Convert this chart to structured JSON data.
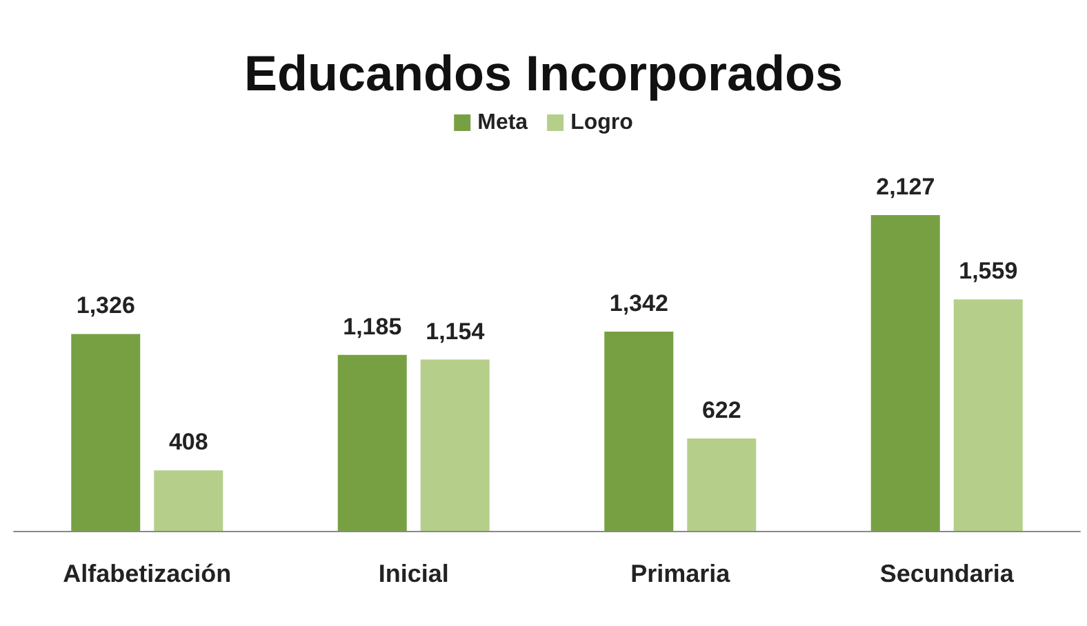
{
  "chart_data": {
    "type": "bar",
    "title": "Educandos Incorporados",
    "categories": [
      "Alfabetización",
      "Inicial",
      "Primaria",
      "Secundaria"
    ],
    "series": [
      {
        "name": "Meta",
        "color": "#77a043",
        "values": [
          1326,
          1185,
          1342,
          2127
        ],
        "value_labels": [
          "1,326",
          "1,185",
          "1,342",
          "2,127"
        ]
      },
      {
        "name": "Logro",
        "color": "#b5cf8a",
        "values": [
          408,
          1154,
          622,
          1559
        ],
        "value_labels": [
          "408",
          "1,154",
          "622",
          "1,559"
        ]
      }
    ],
    "legend": "top",
    "grid": false
  }
}
